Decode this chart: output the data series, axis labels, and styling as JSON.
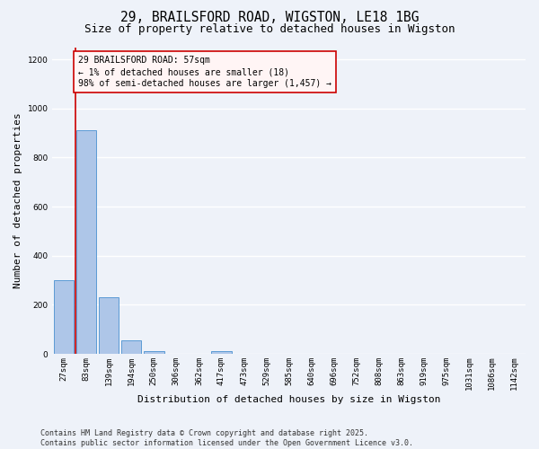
{
  "title": "29, BRAILSFORD ROAD, WIGSTON, LE18 1BG",
  "subtitle": "Size of property relative to detached houses in Wigston",
  "xlabel": "Distribution of detached houses by size in Wigston",
  "ylabel": "Number of detached properties",
  "categories": [
    "27sqm",
    "83sqm",
    "139sqm",
    "194sqm",
    "250sqm",
    "306sqm",
    "362sqm",
    "417sqm",
    "473sqm",
    "529sqm",
    "585sqm",
    "640sqm",
    "696sqm",
    "752sqm",
    "808sqm",
    "863sqm",
    "919sqm",
    "975sqm",
    "1031sqm",
    "1086sqm",
    "1142sqm"
  ],
  "values": [
    300,
    910,
    230,
    55,
    10,
    0,
    0,
    10,
    0,
    0,
    0,
    0,
    0,
    0,
    0,
    0,
    0,
    0,
    0,
    0,
    0
  ],
  "bar_color": "#aec6e8",
  "bar_edge_color": "#5b9bd5",
  "highlight_color": "#cc0000",
  "annotation_text": "29 BRAILSFORD ROAD: 57sqm\n← 1% of detached houses are smaller (18)\n98% of semi-detached houses are larger (1,457) →",
  "annotation_box_facecolor": "#fff5f5",
  "annotation_box_edge": "#cc0000",
  "ylim": [
    0,
    1250
  ],
  "yticks": [
    0,
    200,
    400,
    600,
    800,
    1000,
    1200
  ],
  "background_color": "#eef2f9",
  "grid_color": "#ffffff",
  "footer": "Contains HM Land Registry data © Crown copyright and database right 2025.\nContains public sector information licensed under the Open Government Licence v3.0.",
  "title_fontsize": 10.5,
  "subtitle_fontsize": 9,
  "axis_label_fontsize": 8,
  "tick_fontsize": 6.5,
  "footer_fontsize": 6,
  "annotation_fontsize": 7
}
